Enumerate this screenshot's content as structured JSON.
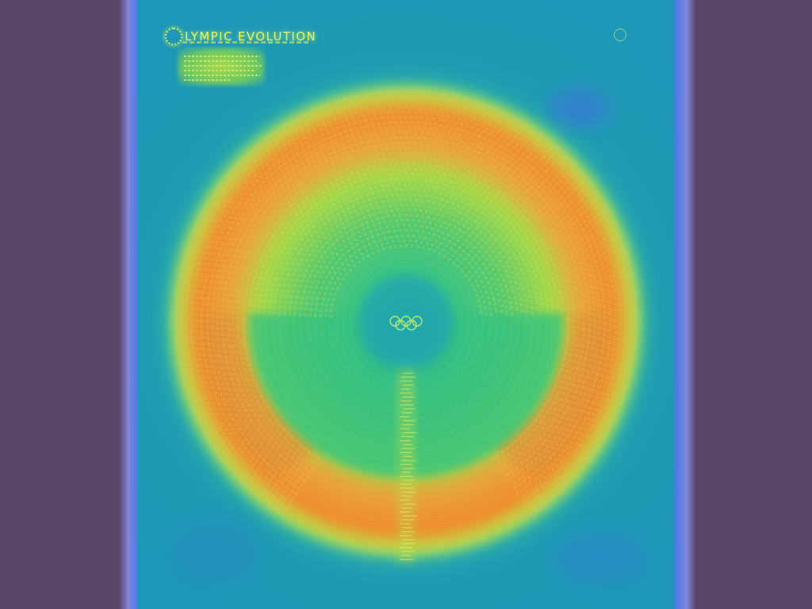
{
  "poster": {
    "title": "LYMPIC EVOLUTION"
  },
  "icons": {
    "title_ring": "olympic-ring-icon",
    "center_emblem": "olympic-rings-icon",
    "corner_emblem": "emblem-icon"
  },
  "colors": {
    "page_side": "#5b4469",
    "poster_base": "#1f9fb0",
    "heat_low": "#3cc880",
    "heat_mid": "#c8e045",
    "heat_high": "#f08a2a",
    "text_glow": "#e7f46b"
  }
}
